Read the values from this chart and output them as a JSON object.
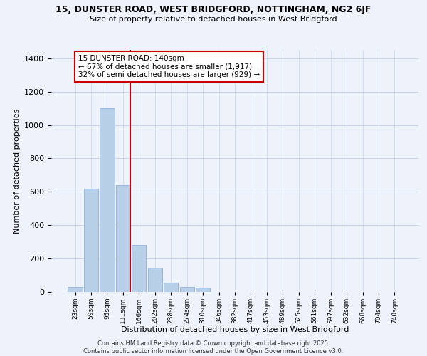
{
  "title_line1": "15, DUNSTER ROAD, WEST BRIDGFORD, NOTTINGHAM, NG2 6JF",
  "title_line2": "Size of property relative to detached houses in West Bridgford",
  "xlabel": "Distribution of detached houses by size in West Bridgford",
  "ylabel": "Number of detached properties",
  "categories": [
    "23sqm",
    "59sqm",
    "95sqm",
    "131sqm",
    "166sqm",
    "202sqm",
    "238sqm",
    "274sqm",
    "310sqm",
    "346sqm",
    "382sqm",
    "417sqm",
    "453sqm",
    "489sqm",
    "525sqm",
    "561sqm",
    "597sqm",
    "632sqm",
    "668sqm",
    "704sqm",
    "740sqm"
  ],
  "values": [
    30,
    620,
    1100,
    640,
    280,
    145,
    55,
    30,
    25,
    0,
    0,
    0,
    0,
    0,
    0,
    0,
    0,
    0,
    0,
    0,
    0
  ],
  "bar_color": "#b8cfe8",
  "bar_edge_color": "#8fb0d8",
  "vline_color": "#cc0000",
  "annotation_text": "15 DUNSTER ROAD: 140sqm\n← 67% of detached houses are smaller (1,917)\n32% of semi-detached houses are larger (929) →",
  "annotation_box_color": "#ffffff",
  "annotation_box_edge": "#cc0000",
  "ylim": [
    0,
    1450
  ],
  "yticks": [
    0,
    200,
    400,
    600,
    800,
    1000,
    1200,
    1400
  ],
  "footer_line1": "Contains HM Land Registry data © Crown copyright and database right 2025.",
  "footer_line2": "Contains public sector information licensed under the Open Government Licence v3.0.",
  "background_color": "#eef2fb",
  "grid_color": "#c8d4e8"
}
